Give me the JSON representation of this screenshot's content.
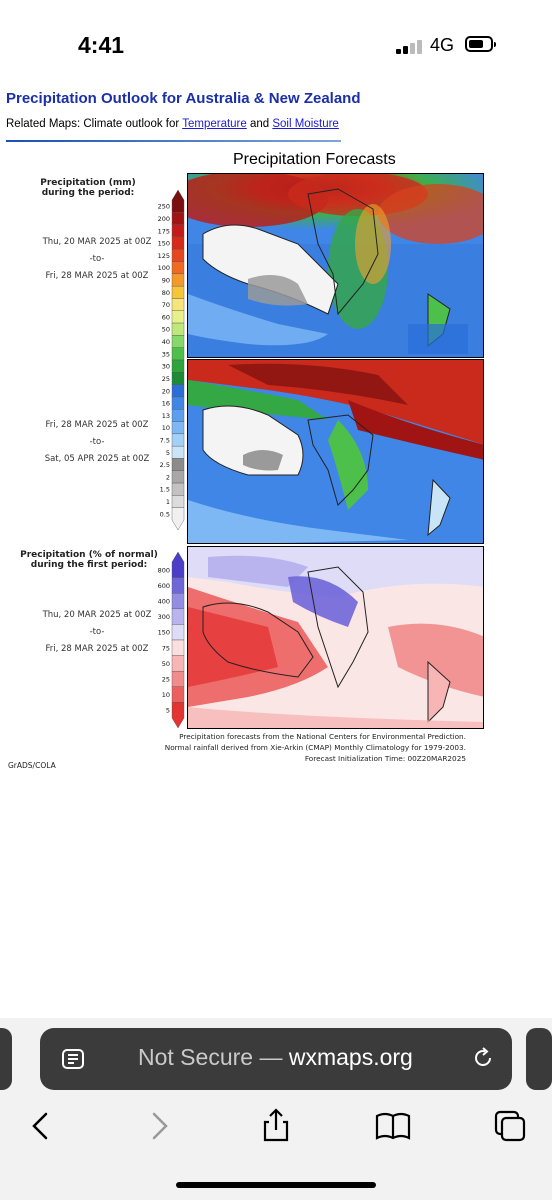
{
  "status_bar": {
    "time": "4:41",
    "network": "4G"
  },
  "page": {
    "title": "Precipitation Outlook for Australia & New Zealand",
    "related_prefix": "Related Maps: Climate outlook for ",
    "related_link1": "Temperature",
    "related_and": " and ",
    "related_link2": "Soil Moisture"
  },
  "figure": {
    "title": "Precipitation Forecasts",
    "legend1_title_line1": "Precipitation (mm)",
    "legend1_title_line2": "during the period:",
    "period1_start": "Thu, 20 MAR 2025 at 00Z",
    "period1_to": "-to-",
    "period1_end": "Fri, 28 MAR 2025 at 00Z",
    "period2_start": "Fri, 28 MAR 2025 at 00Z",
    "period2_to": "-to-",
    "period2_end": "Sat, 05 APR 2025 at 00Z",
    "legend2_title_line1": "Precipitation (% of normal)",
    "legend2_title_line2": "during the first period:",
    "period3_start": "Thu, 20 MAR 2025 at 00Z",
    "period3_to": "-to-",
    "period3_end": "Fri, 28 MAR 2025 at 00Z",
    "mm_ticks": [
      "250",
      "200",
      "175",
      "150",
      "125",
      "100",
      "90",
      "80",
      "70",
      "60",
      "50",
      "40",
      "35",
      "30",
      "25",
      "20",
      "16",
      "13",
      "10",
      "7.5",
      "5",
      "2.5",
      "2",
      "1.5",
      "1",
      "0.5"
    ],
    "mm_colors": [
      "#7a1010",
      "#a11414",
      "#c41a1a",
      "#d62a1a",
      "#e6471e",
      "#ef6a22",
      "#f39a2b",
      "#f6c53a",
      "#f5e57a",
      "#e8f08a",
      "#bfe87a",
      "#86d86a",
      "#4cc04a",
      "#2fa43a",
      "#1c8a36",
      "#2a6ed8",
      "#3f86e6",
      "#5a9ff0",
      "#7db8f5",
      "#a3d0f7",
      "#c9e4f7",
      "#8c8c8c",
      "#a7a7a7",
      "#c2c2c2",
      "#dcdcdc",
      "#f0f0f0"
    ],
    "pct_ticks": [
      "800",
      "600",
      "400",
      "300",
      "150",
      "75",
      "50",
      "25",
      "10",
      "5"
    ],
    "pct_colors": [
      "#4a3fc6",
      "#6f66d8",
      "#948de4",
      "#b9b4ee",
      "#dedcf7",
      "#fbdede",
      "#f7b5b5",
      "#f28b8b",
      "#ec5f5f",
      "#e33434"
    ],
    "footnote_line1": "Precipitation forecasts from the National Centers for Environmental Prediction.",
    "footnote_line2": "Normal rainfall derived from Xie-Arkin (CMAP) Monthly Climatology for 1979-2003.",
    "footnote_line3": "Forecast Initialization Time: 00Z20MAR2025",
    "credit": "GrADS/COLA"
  },
  "browser": {
    "url_prefix": "Not Secure — ",
    "url_domain": "wxmaps.org"
  }
}
